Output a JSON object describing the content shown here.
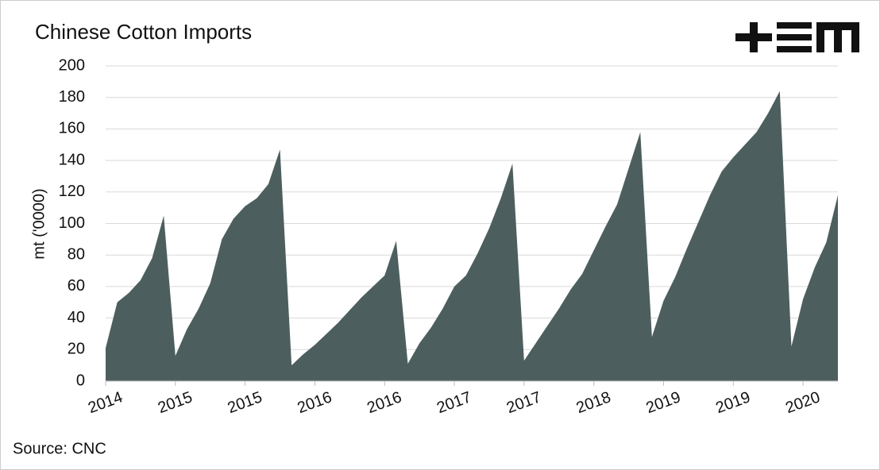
{
  "chart_data": {
    "type": "area",
    "title": "Chinese Cotton Imports",
    "y_label": "mt ('0000)",
    "source": "Source: CNC",
    "color": "#4d5e5e",
    "categories": [
      "2014",
      null,
      null,
      null,
      null,
      null,
      "2015",
      null,
      null,
      null,
      null,
      null,
      "2015",
      null,
      null,
      null,
      null,
      null,
      "2016",
      null,
      null,
      null,
      null,
      null,
      "2016",
      null,
      null,
      null,
      null,
      null,
      "2017",
      null,
      null,
      null,
      null,
      null,
      "2017",
      null,
      null,
      null,
      null,
      null,
      "2018",
      null,
      null,
      null,
      null,
      null,
      "2019",
      null,
      null,
      null,
      null,
      null,
      "2019",
      null,
      null,
      null,
      null,
      null,
      "2020",
      null,
      null,
      null
    ],
    "values": [
      21,
      50,
      56,
      64,
      78,
      105,
      16,
      33,
      46,
      62,
      90,
      103,
      111,
      116,
      125,
      147,
      10,
      17,
      23,
      30,
      37,
      45,
      53,
      60,
      67,
      89,
      11,
      24,
      34,
      46,
      60,
      67,
      81,
      97,
      116,
      138,
      13,
      24,
      35,
      46,
      58,
      68,
      83,
      98,
      112,
      135,
      158,
      28,
      51,
      66,
      84,
      101,
      118,
      133,
      142,
      150,
      158,
      170,
      184,
      22,
      52,
      72,
      88,
      118
    ],
    "ylim": [
      0,
      200
    ],
    "yticks": [
      0,
      20,
      40,
      60,
      80,
      100,
      120,
      140,
      160,
      180,
      200
    ],
    "grid": true
  }
}
